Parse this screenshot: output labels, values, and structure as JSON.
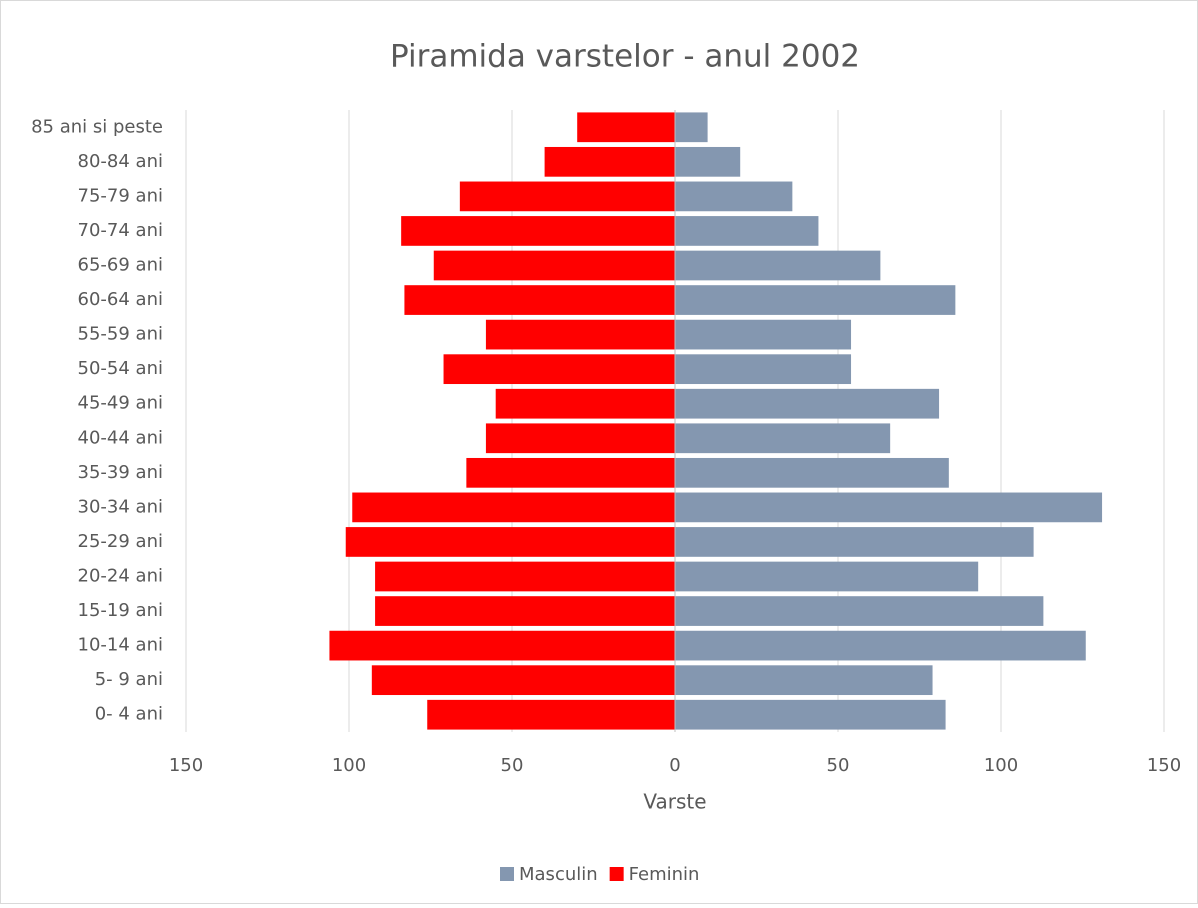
{
  "chart_data": {
    "type": "bar",
    "orientation": "horizontal",
    "stacked": true,
    "title": "Piramida varstelor - anul 2002",
    "x_label": "Varste",
    "categories": [
      "85 ani si peste",
      "80-84 ani",
      "75-79 ani",
      "70-74 ani",
      "65-69 ani",
      "60-64 ani",
      "55-59 ani",
      "50-54 ani",
      "45-49 ani",
      "40-44 ani",
      "35-39 ani",
      "30-34 ani",
      "25-29 ani",
      "20-24 ani",
      "15-19 ani",
      "10-14 ani",
      "5- 9 ani",
      "0- 4 ani"
    ],
    "series": [
      {
        "name": "Masculin",
        "color": "#8497b0",
        "values": [
          10,
          20,
          36,
          44,
          63,
          86,
          54,
          54,
          81,
          66,
          84,
          131,
          110,
          93,
          113,
          126,
          79,
          83
        ]
      },
      {
        "name": "Feminin",
        "color": "#ff0000",
        "values": [
          -30,
          -40,
          -66,
          -84,
          -74,
          -83,
          -58,
          -71,
          -55,
          -58,
          -64,
          -99,
          -101,
          -92,
          -92,
          -106,
          -93,
          -76
        ]
      }
    ],
    "xlim": [
      -150,
      150
    ],
    "xticks": [
      {
        "value": -150,
        "label": "150"
      },
      {
        "value": -100,
        "label": "100"
      },
      {
        "value": -50,
        "label": "50"
      },
      0,
      50,
      100,
      150
    ],
    "grid": true,
    "legend": "bottom"
  }
}
